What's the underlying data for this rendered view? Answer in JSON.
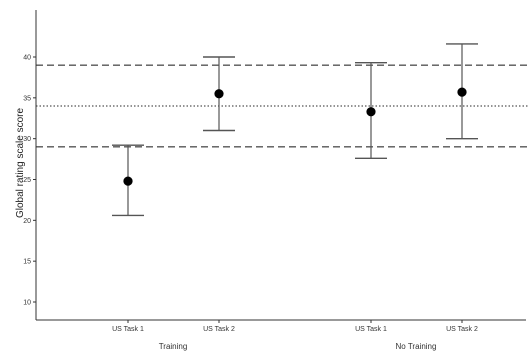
{
  "chart_data": {
    "type": "scatter",
    "title": "",
    "xlabel": "",
    "ylabel": "Global rating scale score",
    "ylim": [
      8,
      47
    ],
    "yticks": [
      10,
      15,
      20,
      25,
      30,
      35,
      40
    ],
    "grid": false,
    "points": [
      {
        "category": "US Task 1",
        "group": "Training",
        "mean": 24.8,
        "lower": 20.6,
        "upper": 29.2
      },
      {
        "category": "US Task 2",
        "group": "Training",
        "mean": 35.5,
        "lower": 31.0,
        "upper": 40.0
      },
      {
        "category": "US Task 1",
        "group": "No Training",
        "mean": 33.3,
        "lower": 27.6,
        "upper": 39.3
      },
      {
        "category": "US Task 2",
        "group": "No Training",
        "mean": 35.7,
        "lower": 30.0,
        "upper": 41.6
      }
    ],
    "groups": [
      "Training",
      "No Training"
    ],
    "reference_lines": [
      {
        "value": 39.0,
        "style": "dashed"
      },
      {
        "value": 34.0,
        "style": "dotted"
      },
      {
        "value": 29.0,
        "style": "dashed"
      }
    ],
    "colors": {
      "points": "#000000",
      "error_bars": "#555555",
      "axis": "#333333",
      "reference_lines": "#555555"
    }
  }
}
